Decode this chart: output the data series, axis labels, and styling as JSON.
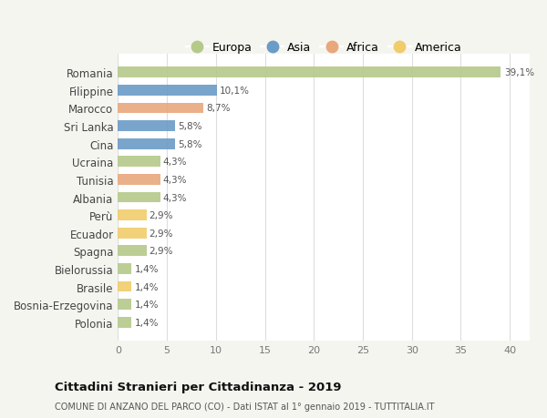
{
  "categories": [
    "Romania",
    "Filippine",
    "Marocco",
    "Sri Lanka",
    "Cina",
    "Ucraina",
    "Tunisia",
    "Albania",
    "Perù",
    "Ecuador",
    "Spagna",
    "Bielorussia",
    "Brasile",
    "Bosnia-Erzegovina",
    "Polonia"
  ],
  "values": [
    39.1,
    10.1,
    8.7,
    5.8,
    5.8,
    4.3,
    4.3,
    4.3,
    2.9,
    2.9,
    2.9,
    1.4,
    1.4,
    1.4,
    1.4
  ],
  "labels": [
    "39,1%",
    "10,1%",
    "8,7%",
    "5,8%",
    "5,8%",
    "4,3%",
    "4,3%",
    "4,3%",
    "2,9%",
    "2,9%",
    "2,9%",
    "1,4%",
    "1,4%",
    "1,4%",
    "1,4%"
  ],
  "colors": [
    "#b5c98a",
    "#6b9bc7",
    "#e8a87c",
    "#6b9bc7",
    "#6b9bc7",
    "#b5c98a",
    "#e8a87c",
    "#b5c98a",
    "#f0cc6a",
    "#f0cc6a",
    "#b5c98a",
    "#b5c98a",
    "#f0cc6a",
    "#b5c98a",
    "#b5c98a"
  ],
  "legend_labels": [
    "Europa",
    "Asia",
    "Africa",
    "America"
  ],
  "legend_colors": [
    "#b5c98a",
    "#6b9bc7",
    "#e8a87c",
    "#f0cc6a"
  ],
  "title": "Cittadini Stranieri per Cittadinanza - 2019",
  "subtitle": "COMUNE DI ANZANO DEL PARCO (CO) - Dati ISTAT al 1° gennaio 2019 - TUTTITALIA.IT",
  "xlim": [
    0,
    42
  ],
  "xticks": [
    0,
    5,
    10,
    15,
    20,
    25,
    30,
    35,
    40
  ],
  "background_color": "#ffffff",
  "outer_bg": "#f5f5f0"
}
